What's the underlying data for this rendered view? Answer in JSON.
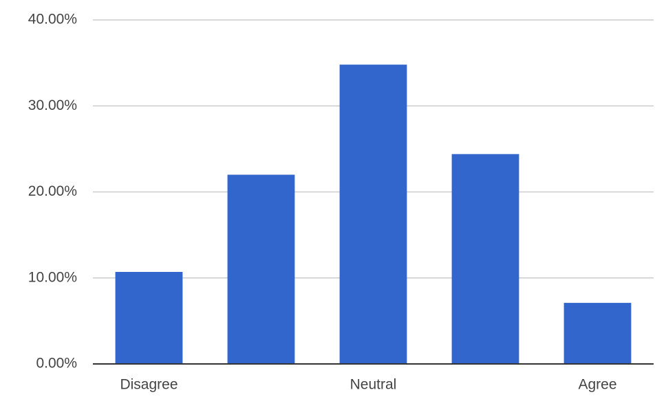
{
  "chart_data": {
    "type": "bar",
    "categories": [
      "Disagree",
      null,
      "Neutral",
      null,
      "Agree"
    ],
    "values": [
      10.7,
      22.0,
      34.8,
      24.4,
      7.1
    ],
    "color": "#3366cc",
    "ylim": [
      0,
      40
    ],
    "yticks": [
      {
        "value": 0,
        "label": "0.00%"
      },
      {
        "value": 10,
        "label": "10.00%"
      },
      {
        "value": 20,
        "label": "20.00%"
      },
      {
        "value": 30,
        "label": "30.00%"
      },
      {
        "value": 40,
        "label": "40.00%"
      }
    ],
    "grid": true
  }
}
